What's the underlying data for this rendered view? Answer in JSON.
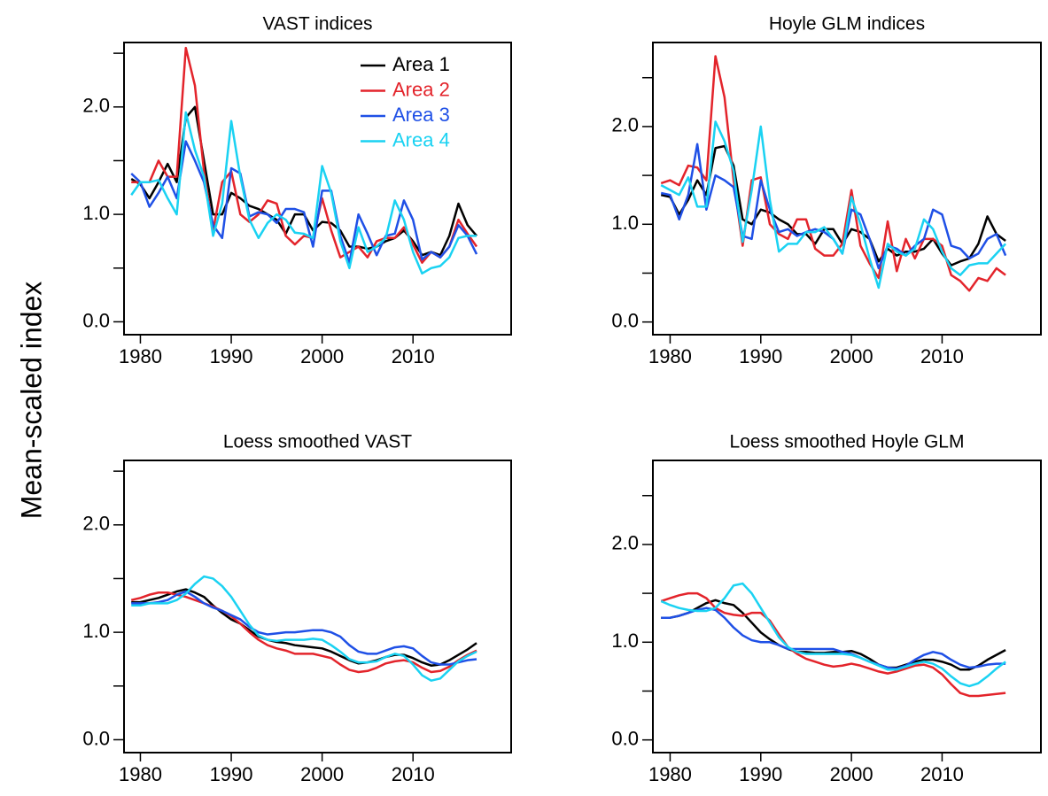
{
  "ylabel": "Mean-scaled index",
  "chart_data": [
    {
      "type": "line",
      "title": "VAST indices",
      "legend": "top-right",
      "x": [
        1979,
        1980,
        1981,
        1982,
        1983,
        1984,
        1985,
        1986,
        1987,
        1988,
        1989,
        1990,
        1991,
        1992,
        1993,
        1994,
        1995,
        1996,
        1997,
        1998,
        1999,
        2000,
        2001,
        2002,
        2003,
        2004,
        2005,
        2006,
        2007,
        2008,
        2009,
        2010,
        2011,
        2012,
        2013,
        2014,
        2015,
        2016,
        2017
      ],
      "xlim": [
        1978.2,
        2020.8
      ],
      "xticks": [
        1980,
        1990,
        2000,
        2010
      ],
      "ylim": [
        -0.12,
        2.6
      ],
      "yticks": [
        {
          "value": 0,
          "label": "0.0"
        },
        {
          "value": 1,
          "label": "1.0"
        },
        {
          "value": 2,
          "label": "2.0"
        }
      ],
      "yticks_minor": [
        0.5,
        1.5,
        2.5
      ],
      "series": [
        {
          "name": "Area 1",
          "color": "#000000",
          "values": [
            1.33,
            1.28,
            1.15,
            1.3,
            1.47,
            1.3,
            1.9,
            2.0,
            1.5,
            1.0,
            1.0,
            1.2,
            1.15,
            1.08,
            1.05,
            1.0,
            0.95,
            0.82,
            1.0,
            1.0,
            0.85,
            0.93,
            0.92,
            0.85,
            0.7,
            0.7,
            0.68,
            0.7,
            0.75,
            0.78,
            0.85,
            0.75,
            0.62,
            0.65,
            0.62,
            0.8,
            1.1,
            0.9,
            0.8
          ]
        },
        {
          "name": "Area 2",
          "color": "#e3242b",
          "values": [
            1.3,
            1.3,
            1.3,
            1.5,
            1.35,
            1.35,
            2.55,
            2.2,
            1.4,
            0.85,
            1.3,
            1.4,
            1.0,
            0.93,
            1.0,
            1.13,
            1.1,
            0.8,
            0.72,
            0.8,
            0.78,
            1.15,
            0.85,
            0.6,
            0.65,
            0.7,
            0.6,
            0.75,
            0.78,
            0.78,
            0.88,
            0.72,
            0.55,
            0.65,
            0.6,
            0.7,
            0.95,
            0.82,
            0.7
          ]
        },
        {
          "name": "Area 3",
          "color": "#1f50e6",
          "values": [
            1.38,
            1.3,
            1.07,
            1.2,
            1.35,
            1.15,
            1.68,
            1.5,
            1.3,
            0.9,
            0.78,
            1.43,
            1.38,
            0.98,
            1.02,
            1.0,
            0.92,
            1.05,
            1.05,
            1.02,
            0.7,
            1.22,
            1.22,
            0.8,
            0.55,
            1.0,
            0.82,
            0.62,
            0.8,
            0.82,
            1.13,
            0.95,
            0.58,
            0.65,
            0.6,
            0.7,
            0.9,
            0.8,
            0.63
          ]
        },
        {
          "name": "Area 4",
          "color": "#1ad2f2",
          "values": [
            1.18,
            1.3,
            1.3,
            1.32,
            1.15,
            1.0,
            1.95,
            1.6,
            1.35,
            0.8,
            1.1,
            1.87,
            1.35,
            0.95,
            0.78,
            0.92,
            1.0,
            0.95,
            0.83,
            0.82,
            0.78,
            1.45,
            1.2,
            0.75,
            0.5,
            0.88,
            0.65,
            0.7,
            0.78,
            1.13,
            0.95,
            0.65,
            0.45,
            0.5,
            0.52,
            0.6,
            0.78,
            0.8,
            0.8
          ]
        }
      ]
    },
    {
      "type": "line",
      "title": "Hoyle GLM indices",
      "x": [
        1979,
        1980,
        1981,
        1982,
        1983,
        1984,
        1985,
        1986,
        1987,
        1988,
        1989,
        1990,
        1991,
        1992,
        1993,
        1994,
        1995,
        1996,
        1997,
        1998,
        1999,
        2000,
        2001,
        2002,
        2003,
        2004,
        2005,
        2006,
        2007,
        2008,
        2009,
        2010,
        2011,
        2012,
        2013,
        2014,
        2015,
        2016,
        2017
      ],
      "xlim": [
        1978.1,
        2020.9
      ],
      "xticks": [
        1980,
        1990,
        2000,
        2010
      ],
      "ylim": [
        -0.13,
        2.86
      ],
      "yticks": [
        {
          "value": 0,
          "label": "0.0"
        },
        {
          "value": 1,
          "label": "1.0"
        },
        {
          "value": 2,
          "label": "2.0"
        }
      ],
      "yticks_minor": [
        0.5,
        1.5,
        2.5
      ],
      "series": [
        {
          "color": "#000000",
          "values": [
            1.3,
            1.28,
            1.1,
            1.25,
            1.45,
            1.3,
            1.78,
            1.8,
            1.6,
            1.05,
            1.0,
            1.15,
            1.12,
            1.05,
            1.0,
            0.9,
            0.9,
            0.8,
            0.95,
            0.95,
            0.8,
            0.95,
            0.92,
            0.85,
            0.62,
            0.75,
            0.68,
            0.72,
            0.72,
            0.75,
            0.85,
            0.7,
            0.58,
            0.62,
            0.65,
            0.8,
            1.08,
            0.9,
            0.83
          ]
        },
        {
          "color": "#e3242b",
          "values": [
            1.42,
            1.45,
            1.4,
            1.6,
            1.58,
            1.45,
            2.72,
            2.3,
            1.45,
            0.78,
            1.45,
            1.48,
            1.0,
            0.9,
            0.85,
            1.05,
            1.05,
            0.75,
            0.68,
            0.68,
            0.8,
            1.35,
            0.78,
            0.6,
            0.45,
            1.03,
            0.52,
            0.85,
            0.65,
            0.85,
            0.85,
            0.78,
            0.48,
            0.42,
            0.32,
            0.45,
            0.42,
            0.55,
            0.48
          ]
        },
        {
          "color": "#1f50e6",
          "values": [
            1.32,
            1.3,
            1.05,
            1.3,
            1.82,
            1.15,
            1.5,
            1.45,
            1.38,
            0.88,
            0.85,
            1.45,
            1.15,
            0.92,
            0.95,
            0.88,
            0.92,
            0.95,
            0.92,
            0.85,
            0.7,
            1.15,
            1.1,
            0.85,
            0.55,
            0.78,
            0.75,
            0.68,
            0.78,
            0.85,
            1.15,
            1.1,
            0.78,
            0.75,
            0.65,
            0.7,
            0.85,
            0.9,
            0.68
          ]
        },
        {
          "color": "#1ad2f2",
          "values": [
            1.4,
            1.35,
            1.3,
            1.48,
            1.18,
            1.18,
            2.05,
            1.85,
            1.55,
            0.82,
            1.35,
            2.0,
            1.25,
            0.72,
            0.8,
            0.8,
            0.92,
            0.92,
            0.97,
            0.85,
            0.7,
            1.28,
            1.0,
            0.65,
            0.35,
            0.8,
            0.72,
            0.68,
            0.75,
            1.05,
            0.95,
            0.72,
            0.55,
            0.48,
            0.58,
            0.6,
            0.6,
            0.7,
            0.8
          ]
        }
      ]
    },
    {
      "type": "line",
      "title": "Loess smoothed VAST",
      "x": [
        1979,
        1980,
        1981,
        1982,
        1983,
        1984,
        1985,
        1986,
        1987,
        1988,
        1989,
        1990,
        1991,
        1992,
        1993,
        1994,
        1995,
        1996,
        1997,
        1998,
        1999,
        2000,
        2001,
        2002,
        2003,
        2004,
        2005,
        2006,
        2007,
        2008,
        2009,
        2010,
        2011,
        2012,
        2013,
        2014,
        2015,
        2016,
        2017
      ],
      "xlim": [
        1978.2,
        2020.8
      ],
      "xticks": [
        1980,
        1990,
        2000,
        2010
      ],
      "ylim": [
        -0.12,
        2.6
      ],
      "yticks": [
        {
          "value": 0,
          "label": "0.0"
        },
        {
          "value": 1,
          "label": "1.0"
        },
        {
          "value": 2,
          "label": "2.0"
        }
      ],
      "yticks_minor": [
        0.5,
        1.5,
        2.5
      ],
      "series": [
        {
          "color": "#000000",
          "values": [
            1.28,
            1.28,
            1.3,
            1.32,
            1.35,
            1.38,
            1.4,
            1.37,
            1.33,
            1.25,
            1.18,
            1.12,
            1.08,
            1.02,
            0.96,
            0.93,
            0.91,
            0.9,
            0.88,
            0.87,
            0.86,
            0.85,
            0.82,
            0.78,
            0.74,
            0.71,
            0.72,
            0.74,
            0.77,
            0.79,
            0.79,
            0.76,
            0.72,
            0.69,
            0.7,
            0.74,
            0.79,
            0.84,
            0.9
          ]
        },
        {
          "color": "#e3242b",
          "values": [
            1.3,
            1.32,
            1.35,
            1.37,
            1.37,
            1.35,
            1.33,
            1.3,
            1.27,
            1.24,
            1.2,
            1.15,
            1.08,
            1.0,
            0.93,
            0.88,
            0.85,
            0.83,
            0.8,
            0.8,
            0.8,
            0.78,
            0.76,
            0.7,
            0.65,
            0.63,
            0.64,
            0.67,
            0.71,
            0.73,
            0.74,
            0.72,
            0.67,
            0.63,
            0.64,
            0.68,
            0.74,
            0.79,
            0.83
          ]
        },
        {
          "color": "#1f50e6",
          "values": [
            1.27,
            1.27,
            1.27,
            1.28,
            1.3,
            1.35,
            1.38,
            1.33,
            1.27,
            1.23,
            1.2,
            1.16,
            1.12,
            1.05,
            1.0,
            0.98,
            0.99,
            1.0,
            1.0,
            1.01,
            1.02,
            1.02,
            1.0,
            0.96,
            0.88,
            0.82,
            0.8,
            0.8,
            0.83,
            0.86,
            0.87,
            0.85,
            0.78,
            0.72,
            0.7,
            0.7,
            0.72,
            0.74,
            0.75
          ]
        },
        {
          "color": "#1ad2f2",
          "values": [
            1.25,
            1.25,
            1.27,
            1.27,
            1.27,
            1.3,
            1.36,
            1.45,
            1.52,
            1.5,
            1.43,
            1.33,
            1.2,
            1.07,
            0.97,
            0.93,
            0.92,
            0.93,
            0.93,
            0.93,
            0.94,
            0.93,
            0.88,
            0.82,
            0.75,
            0.72,
            0.72,
            0.73,
            0.77,
            0.8,
            0.78,
            0.7,
            0.6,
            0.55,
            0.57,
            0.65,
            0.73,
            0.78,
            0.82
          ]
        }
      ]
    },
    {
      "type": "line",
      "title": "Loess smoothed Hoyle GLM",
      "x": [
        1979,
        1980,
        1981,
        1982,
        1983,
        1984,
        1985,
        1986,
        1987,
        1988,
        1989,
        1990,
        1991,
        1992,
        1993,
        1994,
        1995,
        1996,
        1997,
        1998,
        1999,
        2000,
        2001,
        2002,
        2003,
        2004,
        2005,
        2006,
        2007,
        2008,
        2009,
        2010,
        2011,
        2012,
        2013,
        2014,
        2015,
        2016,
        2017
      ],
      "xlim": [
        1978.1,
        2020.9
      ],
      "xticks": [
        1980,
        1990,
        2000,
        2010
      ],
      "ylim": [
        -0.13,
        2.86
      ],
      "yticks": [
        {
          "value": 0,
          "label": "0.0"
        },
        {
          "value": 1,
          "label": "1.0"
        },
        {
          "value": 2,
          "label": "2.0"
        }
      ],
      "yticks_minor": [
        0.5,
        1.5,
        2.5
      ],
      "series": [
        {
          "color": "#000000",
          "values": [
            1.25,
            1.25,
            1.27,
            1.3,
            1.35,
            1.4,
            1.43,
            1.4,
            1.38,
            1.3,
            1.2,
            1.1,
            1.03,
            0.97,
            0.93,
            0.9,
            0.9,
            0.89,
            0.89,
            0.9,
            0.9,
            0.91,
            0.88,
            0.83,
            0.77,
            0.74,
            0.74,
            0.77,
            0.8,
            0.82,
            0.82,
            0.8,
            0.77,
            0.72,
            0.72,
            0.76,
            0.82,
            0.87,
            0.92
          ]
        },
        {
          "color": "#e3242b",
          "values": [
            1.42,
            1.45,
            1.48,
            1.5,
            1.5,
            1.45,
            1.35,
            1.3,
            1.28,
            1.27,
            1.3,
            1.3,
            1.22,
            1.08,
            0.95,
            0.88,
            0.83,
            0.8,
            0.77,
            0.75,
            0.76,
            0.78,
            0.76,
            0.73,
            0.7,
            0.68,
            0.7,
            0.73,
            0.76,
            0.77,
            0.74,
            0.67,
            0.57,
            0.48,
            0.45,
            0.45,
            0.46,
            0.47,
            0.48
          ]
        },
        {
          "color": "#1f50e6",
          "values": [
            1.25,
            1.25,
            1.27,
            1.3,
            1.33,
            1.35,
            1.33,
            1.25,
            1.15,
            1.07,
            1.02,
            1.0,
            1.0,
            0.97,
            0.93,
            0.93,
            0.93,
            0.93,
            0.93,
            0.93,
            0.9,
            0.88,
            0.84,
            0.8,
            0.77,
            0.74,
            0.73,
            0.76,
            0.82,
            0.87,
            0.9,
            0.88,
            0.82,
            0.77,
            0.74,
            0.75,
            0.77,
            0.78,
            0.78
          ]
        },
        {
          "color": "#1ad2f2",
          "values": [
            1.42,
            1.38,
            1.35,
            1.33,
            1.32,
            1.32,
            1.35,
            1.45,
            1.58,
            1.6,
            1.5,
            1.35,
            1.2,
            1.05,
            0.95,
            0.9,
            0.88,
            0.88,
            0.88,
            0.88,
            0.88,
            0.87,
            0.84,
            0.8,
            0.76,
            0.72,
            0.72,
            0.75,
            0.78,
            0.8,
            0.78,
            0.73,
            0.65,
            0.58,
            0.55,
            0.58,
            0.65,
            0.73,
            0.8
          ]
        }
      ]
    }
  ]
}
